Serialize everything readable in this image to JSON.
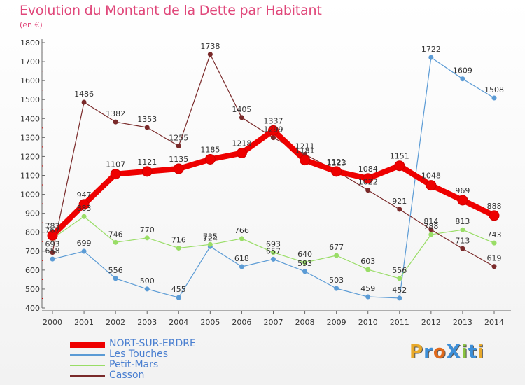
{
  "title": "Evolution du Montant de la Dette par Habitant",
  "unit": "(en €)",
  "logo": {
    "text": "ProXiti",
    "letters": [
      {
        "ch": "P",
        "color": "#e8a92a"
      },
      {
        "ch": "r",
        "color": "#3d8fd8"
      },
      {
        "ch": "o",
        "color": "#e06a1c"
      },
      {
        "ch": "X",
        "color": "#3d8fd8"
      },
      {
        "ch": "i",
        "color": "#8ac43f"
      },
      {
        "ch": "t",
        "color": "#3d8fd8"
      },
      {
        "ch": "i",
        "color": "#e8a92a"
      }
    ]
  },
  "chart_data": {
    "type": "line",
    "title": "Evolution du Montant de la Dette par Habitant",
    "ylabel": "(en €)",
    "xlabel": "",
    "categories": [
      "2000",
      "2001",
      "2002",
      "2003",
      "2004",
      "2005",
      "2006",
      "2007",
      "2008",
      "2009",
      "2010",
      "2011",
      "2012",
      "2013",
      "2014"
    ],
    "ylim": [
      400,
      1800
    ],
    "yticks": [
      400,
      500,
      600,
      700,
      800,
      900,
      1000,
      1100,
      1200,
      1300,
      1400,
      1500,
      1600,
      1700,
      1800
    ],
    "grid": false,
    "legend_position": "bottom-left",
    "series": [
      {
        "name": "NORT-SUR-ERDRE",
        "color": "#ee0000",
        "line_width": 8,
        "marker_radius": 7,
        "values": [
          783,
          947,
          1107,
          1121,
          1135,
          1185,
          1218,
          1337,
          1181,
          1121,
          1084,
          1151,
          1048,
          969,
          888
        ]
      },
      {
        "name": "Les Touches",
        "color": "#5b9bd5",
        "line_width": 1.2,
        "marker_radius": 3.5,
        "values": [
          658,
          699,
          556,
          500,
          455,
          724,
          618,
          657,
          593,
          503,
          459,
          452,
          1722,
          1609,
          1508
        ]
      },
      {
        "name": "Petit-Mars",
        "color": "#99dd66",
        "line_width": 1.2,
        "marker_radius": 3.5,
        "values": [
          767,
          883,
          746,
          770,
          716,
          735,
          766,
          693,
          640,
          677,
          603,
          556,
          788,
          813,
          743
        ]
      },
      {
        "name": "Casson",
        "color": "#7a2a2a",
        "line_width": 1.2,
        "marker_radius": 3.5,
        "values": [
          693,
          1486,
          1382,
          1353,
          1255,
          1738,
          1405,
          1299,
          1211,
          1123,
          1022,
          921,
          814,
          713,
          619
        ]
      }
    ]
  }
}
